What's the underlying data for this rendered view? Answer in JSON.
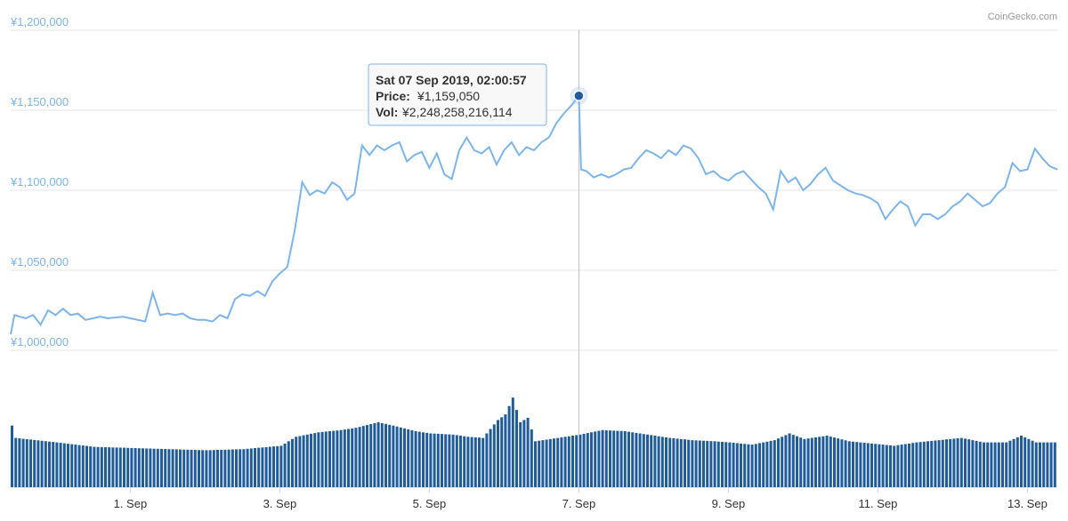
{
  "credit": "CoinGecko.com",
  "colors": {
    "price_line": "#7cb5ec",
    "volume_bar": "#1f5c99",
    "grid": "#e6e6e6",
    "crosshair": "#c0c0c0",
    "tooltip_border": "#7cb5ec",
    "tooltip_bg": "#f7f7f7",
    "marker": "#1f5c99"
  },
  "tooltip": {
    "title": "Sat 07 Sep 2019, 02:00:57",
    "price_label": "Price:",
    "price_value": "¥1,159,050",
    "vol_label": "Vol:",
    "vol_value": "¥2,248,258,216,114"
  },
  "chart_data": {
    "type": "line",
    "title": "",
    "currency": "JPY",
    "grid": true,
    "y_ticks": [
      "¥1,000,000",
      "¥1,050,000",
      "¥1,100,000",
      "¥1,150,000",
      "¥1,200,000"
    ],
    "y_tick_values": [
      1000000,
      1050000,
      1100000,
      1150000,
      1200000
    ],
    "ylim": [
      1000000,
      1200000
    ],
    "xlim_days": [
      30.4,
      44.4
    ],
    "x_ticks": [
      {
        "label": "1. Sep",
        "day": 32
      },
      {
        "label": "3. Sep",
        "day": 34
      },
      {
        "label": "5. Sep",
        "day": 36
      },
      {
        "label": "7. Sep",
        "day": 38
      },
      {
        "label": "9. Sep",
        "day": 40
      },
      {
        "label": "11. Sep",
        "day": 42
      },
      {
        "label": "13. Sep",
        "day": 44
      }
    ],
    "highlight": {
      "day": 38.0,
      "price": 1159050
    },
    "price_series": {
      "name": "Price",
      "anchors": [
        [
          30.4,
          1010000
        ],
        [
          30.45,
          1022000
        ],
        [
          30.6,
          1020000
        ],
        [
          30.7,
          1022000
        ],
        [
          30.8,
          1016000
        ],
        [
          30.9,
          1025000
        ],
        [
          31.0,
          1022000
        ],
        [
          31.1,
          1026000
        ],
        [
          31.2,
          1022000
        ],
        [
          31.3,
          1023000
        ],
        [
          31.4,
          1019000
        ],
        [
          31.5,
          1020000
        ],
        [
          31.6,
          1021000
        ],
        [
          31.7,
          1020000
        ],
        [
          31.9,
          1021000
        ],
        [
          32.0,
          1020000
        ],
        [
          32.2,
          1018000
        ],
        [
          32.3,
          1036000
        ],
        [
          32.4,
          1022000
        ],
        [
          32.5,
          1023000
        ],
        [
          32.6,
          1022000
        ],
        [
          32.7,
          1023000
        ],
        [
          32.8,
          1020000
        ],
        [
          32.9,
          1019000
        ],
        [
          33.0,
          1019000
        ],
        [
          33.1,
          1018000
        ],
        [
          33.2,
          1022000
        ],
        [
          33.3,
          1020000
        ],
        [
          33.4,
          1032000
        ],
        [
          33.5,
          1035000
        ],
        [
          33.6,
          1034000
        ],
        [
          33.7,
          1037000
        ],
        [
          33.8,
          1034000
        ],
        [
          33.9,
          1043000
        ],
        [
          34.0,
          1048000
        ],
        [
          34.1,
          1052000
        ],
        [
          34.2,
          1075000
        ],
        [
          34.3,
          1105000
        ],
        [
          34.4,
          1097000
        ],
        [
          34.5,
          1100000
        ],
        [
          34.6,
          1098000
        ],
        [
          34.7,
          1105000
        ],
        [
          34.8,
          1102000
        ],
        [
          34.9,
          1094000
        ],
        [
          35.0,
          1098000
        ],
        [
          35.1,
          1128000
        ],
        [
          35.2,
          1122000
        ],
        [
          35.3,
          1128000
        ],
        [
          35.4,
          1125000
        ],
        [
          35.5,
          1128000
        ],
        [
          35.6,
          1130000
        ],
        [
          35.7,
          1118000
        ],
        [
          35.8,
          1122000
        ],
        [
          35.9,
          1124000
        ],
        [
          36.0,
          1114000
        ],
        [
          36.1,
          1123000
        ],
        [
          36.2,
          1110000
        ],
        [
          36.3,
          1107000
        ],
        [
          36.4,
          1125000
        ],
        [
          36.5,
          1133000
        ],
        [
          36.6,
          1125000
        ],
        [
          36.7,
          1123000
        ],
        [
          36.8,
          1127000
        ],
        [
          36.9,
          1116000
        ],
        [
          37.0,
          1125000
        ],
        [
          37.1,
          1130000
        ],
        [
          37.2,
          1122000
        ],
        [
          37.3,
          1127000
        ],
        [
          37.4,
          1125000
        ],
        [
          37.5,
          1130000
        ],
        [
          37.6,
          1133000
        ],
        [
          37.7,
          1142000
        ],
        [
          37.8,
          1148000
        ],
        [
          37.9,
          1153000
        ],
        [
          38.0,
          1159050
        ],
        [
          38.03,
          1113000
        ],
        [
          38.1,
          1112000
        ],
        [
          38.2,
          1108000
        ],
        [
          38.3,
          1110000
        ],
        [
          38.4,
          1108000
        ],
        [
          38.5,
          1110000
        ],
        [
          38.6,
          1113000
        ],
        [
          38.7,
          1114000
        ],
        [
          38.8,
          1120000
        ],
        [
          38.9,
          1125000
        ],
        [
          39.0,
          1123000
        ],
        [
          39.1,
          1120000
        ],
        [
          39.2,
          1125000
        ],
        [
          39.3,
          1122000
        ],
        [
          39.4,
          1128000
        ],
        [
          39.5,
          1126000
        ],
        [
          39.6,
          1120000
        ],
        [
          39.7,
          1110000
        ],
        [
          39.8,
          1112000
        ],
        [
          39.9,
          1108000
        ],
        [
          40.0,
          1106000
        ],
        [
          40.1,
          1110000
        ],
        [
          40.2,
          1112000
        ],
        [
          40.3,
          1107000
        ],
        [
          40.4,
          1102000
        ],
        [
          40.5,
          1098000
        ],
        [
          40.6,
          1088000
        ],
        [
          40.7,
          1112000
        ],
        [
          40.8,
          1105000
        ],
        [
          40.9,
          1108000
        ],
        [
          41.0,
          1100000
        ],
        [
          41.1,
          1104000
        ],
        [
          41.2,
          1110000
        ],
        [
          41.3,
          1114000
        ],
        [
          41.4,
          1106000
        ],
        [
          41.5,
          1103000
        ],
        [
          41.6,
          1100000
        ],
        [
          41.7,
          1098000
        ],
        [
          41.8,
          1097000
        ],
        [
          41.9,
          1095000
        ],
        [
          42.0,
          1092000
        ],
        [
          42.1,
          1082000
        ],
        [
          42.2,
          1088000
        ],
        [
          42.3,
          1093000
        ],
        [
          42.4,
          1090000
        ],
        [
          42.5,
          1078000
        ],
        [
          42.6,
          1085000
        ],
        [
          42.7,
          1085000
        ],
        [
          42.8,
          1082000
        ],
        [
          42.9,
          1085000
        ],
        [
          43.0,
          1090000
        ],
        [
          43.1,
          1093000
        ],
        [
          43.2,
          1098000
        ],
        [
          43.3,
          1094000
        ],
        [
          43.4,
          1090000
        ],
        [
          43.5,
          1092000
        ],
        [
          43.6,
          1098000
        ],
        [
          43.7,
          1102000
        ],
        [
          43.8,
          1117000
        ],
        [
          43.9,
          1112000
        ],
        [
          44.0,
          1113000
        ],
        [
          44.1,
          1126000
        ],
        [
          44.2,
          1120000
        ],
        [
          44.3,
          1115000
        ],
        [
          44.4,
          1113000
        ]
      ]
    },
    "volume_series": {
      "name": "Volume",
      "unit": "relative 0-1",
      "anchors": [
        [
          30.4,
          0.55
        ],
        [
          30.45,
          0.44
        ],
        [
          31.0,
          0.4
        ],
        [
          31.5,
          0.36
        ],
        [
          32.0,
          0.35
        ],
        [
          32.5,
          0.34
        ],
        [
          33.0,
          0.33
        ],
        [
          33.5,
          0.34
        ],
        [
          34.0,
          0.37
        ],
        [
          34.2,
          0.45
        ],
        [
          34.5,
          0.49
        ],
        [
          34.8,
          0.51
        ],
        [
          35.0,
          0.53
        ],
        [
          35.3,
          0.58
        ],
        [
          35.5,
          0.55
        ],
        [
          35.8,
          0.5
        ],
        [
          36.0,
          0.48
        ],
        [
          36.3,
          0.47
        ],
        [
          36.5,
          0.45
        ],
        [
          36.7,
          0.44
        ],
        [
          36.9,
          0.6
        ],
        [
          37.0,
          0.65
        ],
        [
          37.1,
          0.8
        ],
        [
          37.2,
          0.58
        ],
        [
          37.3,
          0.62
        ],
        [
          37.4,
          0.41
        ],
        [
          37.6,
          0.43
        ],
        [
          37.8,
          0.45
        ],
        [
          38.0,
          0.47
        ],
        [
          38.3,
          0.51
        ],
        [
          38.6,
          0.5
        ],
        [
          38.9,
          0.47
        ],
        [
          39.2,
          0.44
        ],
        [
          39.5,
          0.42
        ],
        [
          39.8,
          0.41
        ],
        [
          40.0,
          0.4
        ],
        [
          40.3,
          0.38
        ],
        [
          40.6,
          0.42
        ],
        [
          40.8,
          0.48
        ],
        [
          41.0,
          0.43
        ],
        [
          41.3,
          0.46
        ],
        [
          41.6,
          0.41
        ],
        [
          41.9,
          0.39
        ],
        [
          42.2,
          0.37
        ],
        [
          42.5,
          0.4
        ],
        [
          42.8,
          0.42
        ],
        [
          43.1,
          0.44
        ],
        [
          43.4,
          0.4
        ],
        [
          43.7,
          0.4
        ],
        [
          43.9,
          0.46
        ],
        [
          44.1,
          0.4
        ],
        [
          44.4,
          0.4
        ]
      ]
    }
  }
}
